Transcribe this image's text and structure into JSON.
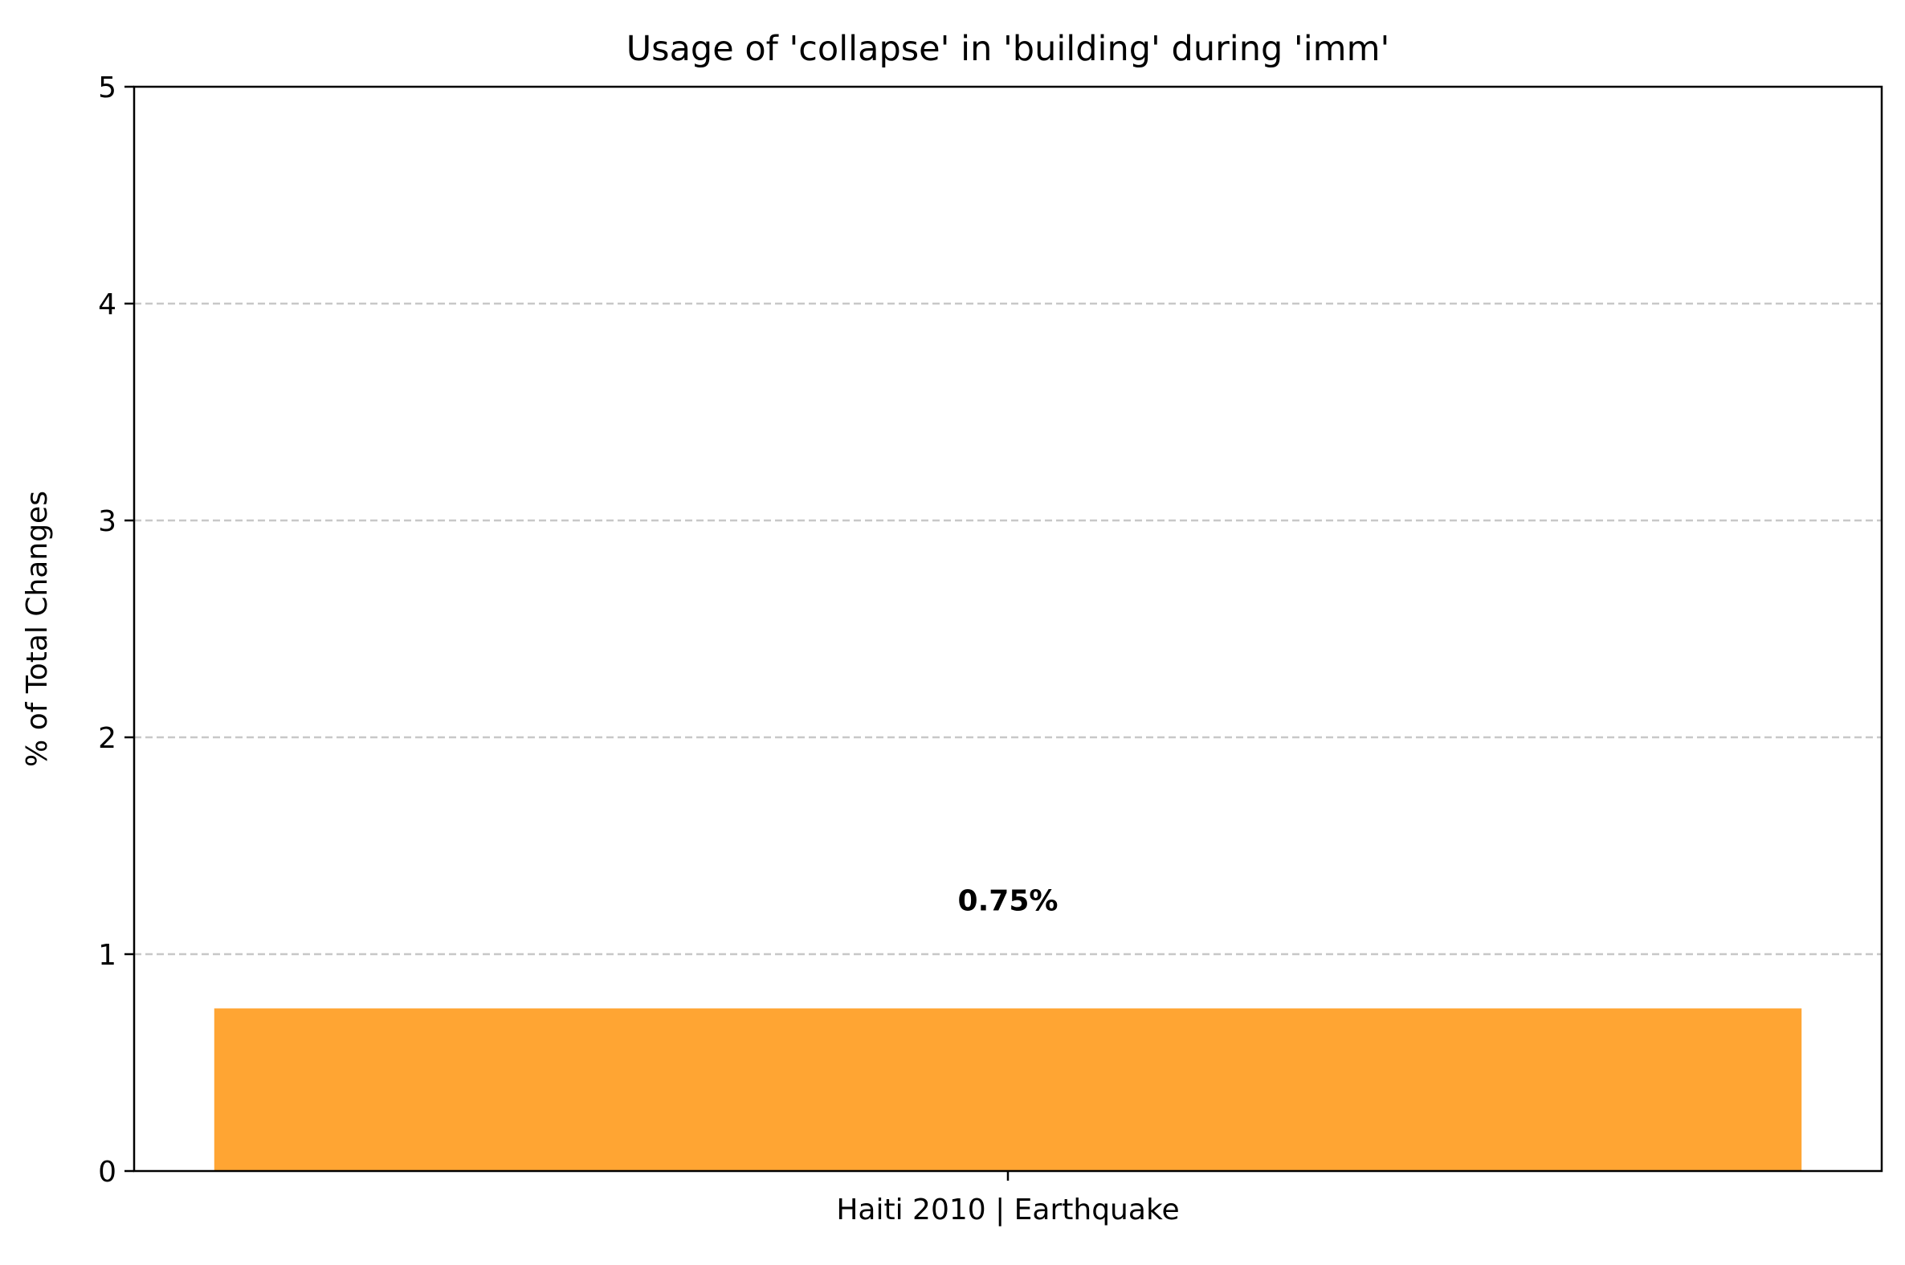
{
  "chart_data": {
    "type": "bar",
    "title": "Usage of 'collapse' in 'building' during 'imm'",
    "xlabel": "",
    "ylabel": "% of Total Changes",
    "categories": [
      "Haiti 2010 | Earthquake"
    ],
    "values": [
      0.75
    ],
    "value_labels": [
      "0.75%"
    ],
    "ylim": [
      0,
      5
    ],
    "yticks": [
      "0",
      "1",
      "2",
      "3",
      "4",
      "5"
    ],
    "grid": "y, dashed",
    "legend": "none",
    "colors": {
      "bar": "#ffa533",
      "grid": "#c8c8c8",
      "axis": "#000000"
    }
  }
}
